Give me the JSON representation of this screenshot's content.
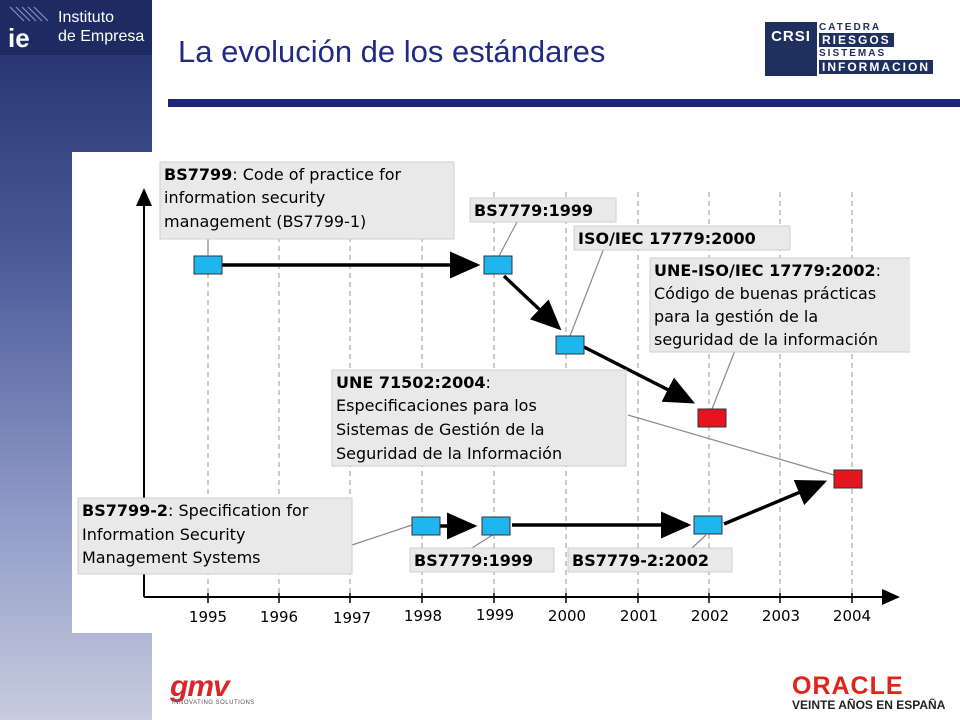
{
  "slide": {
    "title": "La evolución de los estándares"
  },
  "logos": {
    "ie_mark": "ie",
    "ie_line1": "Instituto",
    "ie_line2": "de Empresa",
    "crsi_box": "CRSI",
    "crsi_line1": "CATEDRA",
    "crsi_line2": "RIESGOS",
    "crsi_line3": "SISTEMAS",
    "crsi_line4": "INFORMACION",
    "gmv_word": "gmv",
    "gmv_tagline": "INNOVATING SOLUTIONS",
    "oracle_word": "ORACLE",
    "oracle_tagline": "VEINTE AÑOS EN ESPAÑA"
  },
  "colors": {
    "sidebar_top": "#1f2d6b",
    "title": "#1f2b85",
    "rule": "#1b237a",
    "node_blue": "#1fb6f0",
    "node_red": "#e6141e",
    "callout_bg": "#e9e9e9"
  },
  "diagram": {
    "years": [
      "1995",
      "1996",
      "1997",
      "1998",
      "1999",
      "2000",
      "2001",
      "2002",
      "2003",
      "2004"
    ],
    "nodes": [
      {
        "id": "n1",
        "year": 1995,
        "track": "upper-1",
        "color": "blue"
      },
      {
        "id": "n2",
        "year": 1999,
        "track": "upper-1",
        "color": "blue"
      },
      {
        "id": "n3",
        "year": 2000,
        "track": "upper-2",
        "color": "blue"
      },
      {
        "id": "n4",
        "year": 2002,
        "track": "upper-3",
        "color": "red"
      },
      {
        "id": "n5",
        "year": 2004,
        "track": "middle",
        "color": "red"
      },
      {
        "id": "n6",
        "year": 1998,
        "track": "lower",
        "color": "blue"
      },
      {
        "id": "n7",
        "year": 1999,
        "track": "lower",
        "color": "blue"
      },
      {
        "id": "n8",
        "year": 2002,
        "track": "lower",
        "color": "blue"
      }
    ],
    "callouts": [
      {
        "id": "c1",
        "bold": "BS7799",
        "rest": ": Code of practice for",
        "lines": [
          "information security",
          "management (BS7799-1)"
        ]
      },
      {
        "id": "c2",
        "bold": "BS7779:1999",
        "rest": "",
        "lines": []
      },
      {
        "id": "c3",
        "bold": "ISO/IEC 17779:2000",
        "rest": "",
        "lines": []
      },
      {
        "id": "c4",
        "bold": "UNE-ISO/IEC 17779:2002",
        "rest": ":",
        "lines": [
          "Código de buenas prácticas",
          "para la gestión de la",
          "seguridad de la información"
        ]
      },
      {
        "id": "c5",
        "bold": "UNE 71502:2004",
        "rest": ":",
        "lines": [
          "Especificaciones para los",
          "Sistemas de Gestión de la",
          "Seguridad de la Información"
        ]
      },
      {
        "id": "c6",
        "bold": "BS7799-2",
        "rest": ": Specification for",
        "lines": [
          "Information Security",
          "Management Systems"
        ]
      },
      {
        "id": "c7",
        "bold": "BS7779:1999",
        "rest": "",
        "lines": []
      },
      {
        "id": "c8",
        "bold": "BS7779-2:2002",
        "rest": "",
        "lines": []
      }
    ]
  }
}
